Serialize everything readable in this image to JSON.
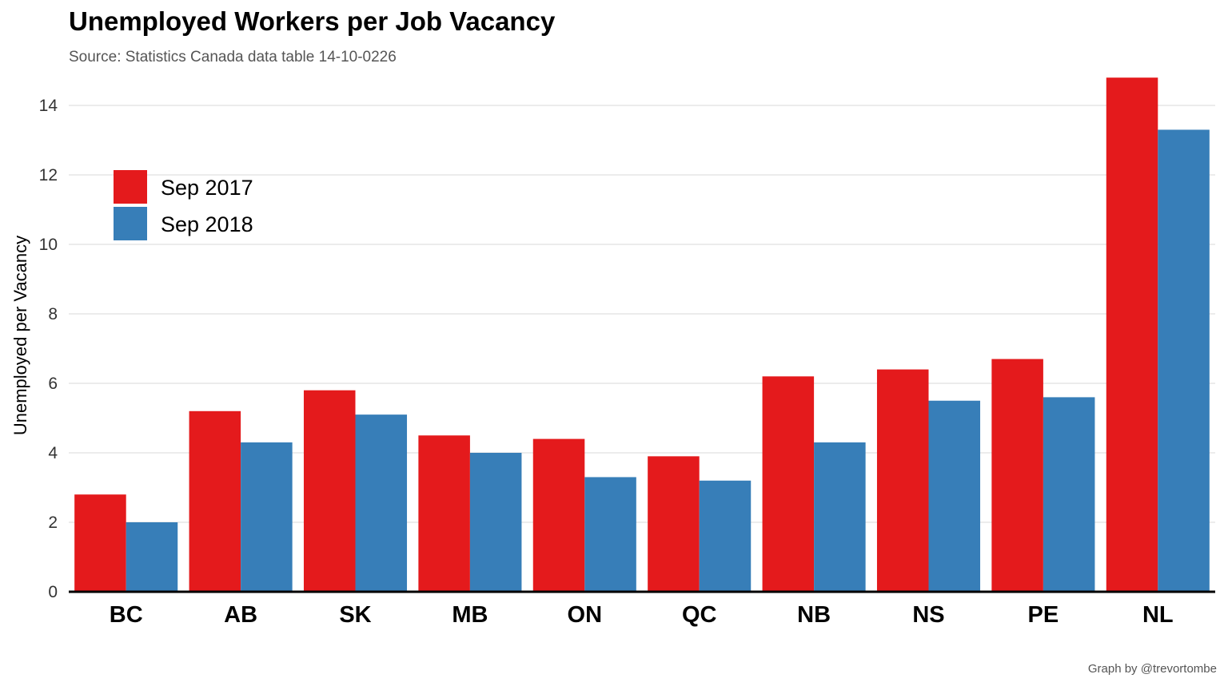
{
  "chart_data": {
    "type": "bar",
    "title": "Unemployed Workers per Job Vacancy",
    "subtitle": "Source: Statistics Canada data table 14-10-0226",
    "caption": "Graph by @trevortombe",
    "xlabel": "",
    "ylabel": "Unemployed per Vacancy",
    "ylim": [
      0,
      15
    ],
    "yticks": [
      "0",
      "2",
      "4",
      "6",
      "8",
      "10",
      "12",
      "14"
    ],
    "categories": [
      "BC",
      "AB",
      "SK",
      "MB",
      "ON",
      "QC",
      "NB",
      "NS",
      "PE",
      "NL"
    ],
    "series": [
      {
        "name": "Sep 2017",
        "color": "#E41A1C",
        "values": [
          2.8,
          5.2,
          5.8,
          4.5,
          4.4,
          3.9,
          6.2,
          6.4,
          6.7,
          14.8
        ]
      },
      {
        "name": "Sep 2018",
        "color": "#377EB8",
        "values": [
          2.0,
          4.3,
          5.1,
          4.0,
          3.3,
          3.2,
          4.3,
          5.5,
          5.6,
          13.3
        ]
      }
    ],
    "grid": "horizontal",
    "legend_position": "top-left"
  }
}
